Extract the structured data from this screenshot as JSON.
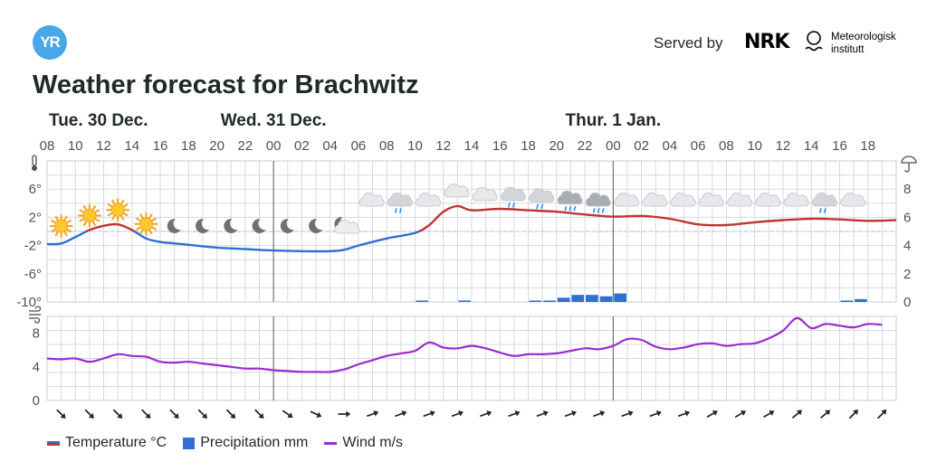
{
  "header": {
    "logo_text": "YR",
    "served_by": "Served by",
    "partner_logo": "NRK",
    "met_institute": [
      "Meteorologisk",
      "institutt"
    ],
    "title": "Weather forecast for Brachwitz"
  },
  "chart_data": {
    "type": "line",
    "days": [
      {
        "label": "Tue. 30 Dec.",
        "hour_index": 0
      },
      {
        "label": "Wed. 31 Dec.",
        "hour_index": 16
      },
      {
        "label": "Thur. 1 Jan.",
        "hour_index": 40
      }
    ],
    "hour_ticks": [
      "08",
      "10",
      "12",
      "14",
      "16",
      "18",
      "20",
      "22",
      "00",
      "02",
      "04",
      "06",
      "08",
      "10",
      "12",
      "14",
      "16",
      "18",
      "20",
      "22",
      "00",
      "02",
      "04",
      "06",
      "08",
      "10",
      "12",
      "14",
      "16",
      "18"
    ],
    "day_separators": [
      16,
      40
    ],
    "temperature": {
      "name": "Temperature °C",
      "ylim": [
        -10,
        10
      ],
      "y_ticks": [
        "6°",
        "2°",
        "-2°",
        "-6°",
        "-10°"
      ],
      "y_tick_values": [
        6,
        2,
        -2,
        -6,
        -10
      ],
      "freezing_line": 0,
      "x": [
        0,
        1,
        2,
        3,
        4,
        5,
        6,
        7,
        8,
        9,
        10,
        12,
        14,
        16,
        18,
        20,
        21,
        22,
        24,
        26,
        27,
        28,
        29,
        30,
        32,
        34,
        36,
        38,
        40,
        42,
        44,
        46,
        48,
        50,
        52,
        54,
        56,
        58,
        60
      ],
      "values": [
        -1.8,
        -1.7,
        -0.8,
        0.2,
        0.8,
        1.0,
        0.2,
        -1.0,
        -1.5,
        -1.7,
        -1.9,
        -2.3,
        -2.5,
        -2.7,
        -2.8,
        -2.8,
        -2.6,
        -2.0,
        -1.0,
        -0.2,
        0.9,
        2.8,
        3.6,
        3.0,
        3.2,
        3.0,
        2.8,
        2.4,
        2.1,
        2.2,
        1.8,
        1.0,
        0.9,
        1.3,
        1.6,
        1.8,
        1.7,
        1.5,
        1.6
      ],
      "color_above": "#c03530",
      "color_below": "#2f6fd6"
    },
    "precipitation": {
      "name": "Precipitation mm",
      "ylim": [
        0,
        10
      ],
      "y_ticks": [
        "8",
        "6",
        "4",
        "2",
        "0"
      ],
      "y_tick_values": [
        8,
        6,
        4,
        2,
        0
      ],
      "hours": [
        26,
        29,
        34,
        35,
        36,
        37,
        38,
        39,
        40,
        56,
        57
      ],
      "values": [
        0.1,
        0.1,
        0.1,
        0.1,
        0.3,
        0.5,
        0.5,
        0.4,
        0.6,
        0.1,
        0.2
      ],
      "color": "#2f6fd6"
    },
    "wind": {
      "name": "Wind m/s",
      "ylim": [
        0,
        10
      ],
      "y_ticks": [
        "8",
        "4",
        "0"
      ],
      "y_tick_values": [
        8,
        4,
        0
      ],
      "x": [
        0,
        1,
        2,
        3,
        4,
        5,
        6,
        7,
        8,
        9,
        10,
        11,
        12,
        13,
        14,
        15,
        16,
        17,
        18,
        19,
        20,
        21,
        22,
        23,
        24,
        25,
        26,
        27,
        28,
        29,
        30,
        31,
        32,
        33,
        34,
        35,
        36,
        37,
        38,
        39,
        40,
        41,
        42,
        43,
        44,
        45,
        46,
        47,
        48,
        49,
        50,
        51,
        52,
        53,
        54,
        55,
        56,
        57,
        58,
        59
      ],
      "values": [
        5.0,
        4.9,
        5.0,
        4.6,
        5.0,
        5.5,
        5.3,
        5.2,
        4.6,
        4.5,
        4.6,
        4.4,
        4.2,
        4.0,
        3.8,
        3.8,
        3.6,
        3.5,
        3.4,
        3.4,
        3.4,
        3.7,
        4.3,
        4.8,
        5.3,
        5.6,
        5.9,
        6.9,
        6.3,
        6.2,
        6.5,
        6.2,
        5.7,
        5.3,
        5.5,
        5.5,
        5.6,
        5.9,
        6.2,
        6.1,
        6.5,
        7.3,
        7.2,
        6.4,
        6.1,
        6.3,
        6.7,
        6.8,
        6.5,
        6.7,
        6.8,
        7.4,
        8.3,
        9.8,
        8.6,
        9.1,
        8.9,
        8.7,
        9.1,
        9.0
      ],
      "color": "#9b2bd1"
    },
    "weather_symbols": [
      {
        "hour": 1,
        "icon": "sun-icon"
      },
      {
        "hour": 3,
        "icon": "sun-icon"
      },
      {
        "hour": 5,
        "icon": "sun-icon"
      },
      {
        "hour": 7,
        "icon": "sun-icon"
      },
      {
        "hour": 9,
        "icon": "moon-icon"
      },
      {
        "hour": 11,
        "icon": "moon-icon"
      },
      {
        "hour": 13,
        "icon": "moon-icon"
      },
      {
        "hour": 15,
        "icon": "moon-icon"
      },
      {
        "hour": 17,
        "icon": "moon-icon"
      },
      {
        "hour": 19,
        "icon": "moon-icon"
      },
      {
        "hour": 21,
        "icon": "moon-cloud-icon"
      },
      {
        "hour": 23,
        "icon": "cloud-icon"
      },
      {
        "hour": 25,
        "icon": "light-rain-cloud-icon"
      },
      {
        "hour": 27,
        "icon": "cloud-icon"
      },
      {
        "hour": 29,
        "icon": "cloud-icon"
      },
      {
        "hour": 31,
        "icon": "cloud-icon"
      },
      {
        "hour": 33,
        "icon": "light-rain-cloud-icon"
      },
      {
        "hour": 35,
        "icon": "light-rain-cloud-icon"
      },
      {
        "hour": 37,
        "icon": "rain-cloud-icon"
      },
      {
        "hour": 39,
        "icon": "rain-cloud-icon"
      },
      {
        "hour": 41,
        "icon": "cloud-icon"
      },
      {
        "hour": 43,
        "icon": "cloud-icon"
      },
      {
        "hour": 45,
        "icon": "cloud-icon"
      },
      {
        "hour": 47,
        "icon": "cloud-icon"
      },
      {
        "hour": 49,
        "icon": "cloud-icon"
      },
      {
        "hour": 51,
        "icon": "cloud-icon"
      },
      {
        "hour": 53,
        "icon": "cloud-icon"
      },
      {
        "hour": 55,
        "icon": "light-rain-cloud-icon"
      },
      {
        "hour": 57,
        "icon": "cloud-icon"
      }
    ],
    "wind_directions_deg": [
      135,
      135,
      135,
      135,
      135,
      135,
      135,
      135,
      125,
      115,
      90,
      70,
      70,
      70,
      70,
      70,
      70,
      70,
      70,
      70,
      70,
      70,
      70,
      60,
      60,
      60,
      50,
      50,
      45,
      45
    ],
    "legend_placement": "bottom-left",
    "grid": true
  },
  "legend": {
    "temperature": "Temperature °C",
    "precipitation": "Precipitation mm",
    "wind": "Wind m/s"
  }
}
